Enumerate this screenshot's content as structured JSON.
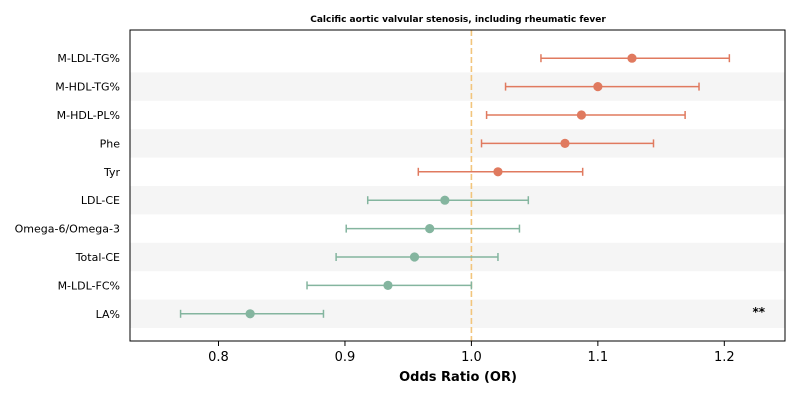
{
  "chart_data": {
    "type": "forest",
    "title": "Calcific aortic valvular stenosis, including rheumatic fever",
    "xlabel": "Odds Ratio (OR)",
    "xlim": [
      0.73,
      1.248
    ],
    "xticks": [
      0.8,
      0.9,
      1.0,
      1.1,
      1.2
    ],
    "xtick_labels": [
      "0.8",
      "0.9",
      "1.0",
      "1.1",
      "1.2"
    ],
    "reference_line": 1.0,
    "categories": [
      "M-LDL-TG%",
      "M-HDL-TG%",
      "M-HDL-PL%",
      "Phe",
      "Tyr",
      "LDL-CE",
      "Omega-6/Omega-3",
      "Total-CE",
      "M-LDL-FC%",
      "LA%"
    ],
    "or": [
      1.127,
      1.1,
      1.087,
      1.074,
      1.021,
      0.979,
      0.967,
      0.955,
      0.934,
      0.825
    ],
    "ci_low": [
      1.055,
      1.027,
      1.012,
      1.008,
      0.958,
      0.918,
      0.901,
      0.893,
      0.87,
      0.77
    ],
    "ci_high": [
      1.204,
      1.18,
      1.169,
      1.144,
      1.088,
      1.045,
      1.038,
      1.021,
      1.0,
      0.883
    ],
    "annotations": [
      {
        "category": "LA%",
        "text": "**"
      }
    ],
    "colors": {
      "positive": "#e07a5f",
      "negative": "#84b59f",
      "reference": "#f2c57c",
      "band": "#f5f5f5"
    }
  }
}
